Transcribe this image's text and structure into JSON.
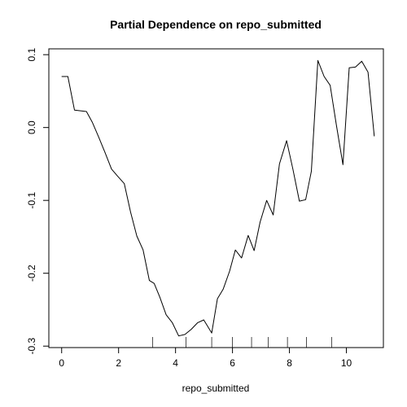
{
  "chart_data": {
    "type": "line",
    "title": "Partial Dependence on repo_submitted",
    "xlabel": "repo_submitted",
    "ylabel": "",
    "xlim": [
      -0.45,
      11.3
    ],
    "ylim": [
      -0.302,
      0.108
    ],
    "x_ticks": [
      0,
      2,
      4,
      6,
      8,
      10
    ],
    "y_ticks": [
      -0.3,
      -0.2,
      -0.1,
      0.0,
      0.1
    ],
    "x_tick_labels": [
      "0",
      "2",
      "4",
      "6",
      "8",
      "10"
    ],
    "y_tick_labels": [
      "-0.3",
      "-0.2",
      "-0.1",
      "0.0",
      "0.1"
    ],
    "grid": false,
    "legend": "none",
    "series": [
      {
        "color": "#000000",
        "x": [
          0.0,
          0.22,
          0.45,
          0.87,
          1.08,
          1.3,
          1.52,
          1.75,
          1.97,
          2.2,
          2.42,
          2.64,
          2.86,
          3.08,
          3.25,
          3.45,
          3.67,
          3.89,
          4.11,
          4.33,
          4.55,
          4.77,
          4.99,
          5.27,
          5.47,
          5.67,
          5.9,
          6.1,
          6.32,
          6.55,
          6.76,
          6.97,
          7.2,
          7.43,
          7.65,
          7.9,
          8.12,
          8.35,
          8.57,
          8.77,
          9.0,
          9.22,
          9.43,
          9.65,
          9.88,
          10.1,
          10.32,
          10.54,
          10.76,
          10.98
        ],
        "y": [
          0.07,
          0.07,
          0.024,
          0.022,
          0.007,
          -0.013,
          -0.034,
          -0.057,
          -0.067,
          -0.077,
          -0.116,
          -0.149,
          -0.168,
          -0.21,
          -0.214,
          -0.233,
          -0.257,
          -0.268,
          -0.286,
          -0.284,
          -0.277,
          -0.268,
          -0.264,
          -0.282,
          -0.235,
          -0.222,
          -0.197,
          -0.168,
          -0.179,
          -0.148,
          -0.169,
          -0.13,
          -0.1,
          -0.12,
          -0.05,
          -0.018,
          -0.057,
          -0.101,
          -0.099,
          -0.06,
          0.092,
          0.07,
          0.058,
          0.003,
          -0.051,
          0.082,
          0.083,
          0.091,
          0.076,
          -0.012
        ]
      }
    ],
    "rug": [
      3.2,
      4.37,
      5.27,
      6.0,
      6.67,
      7.25,
      7.93,
      8.6,
      9.48
    ]
  }
}
